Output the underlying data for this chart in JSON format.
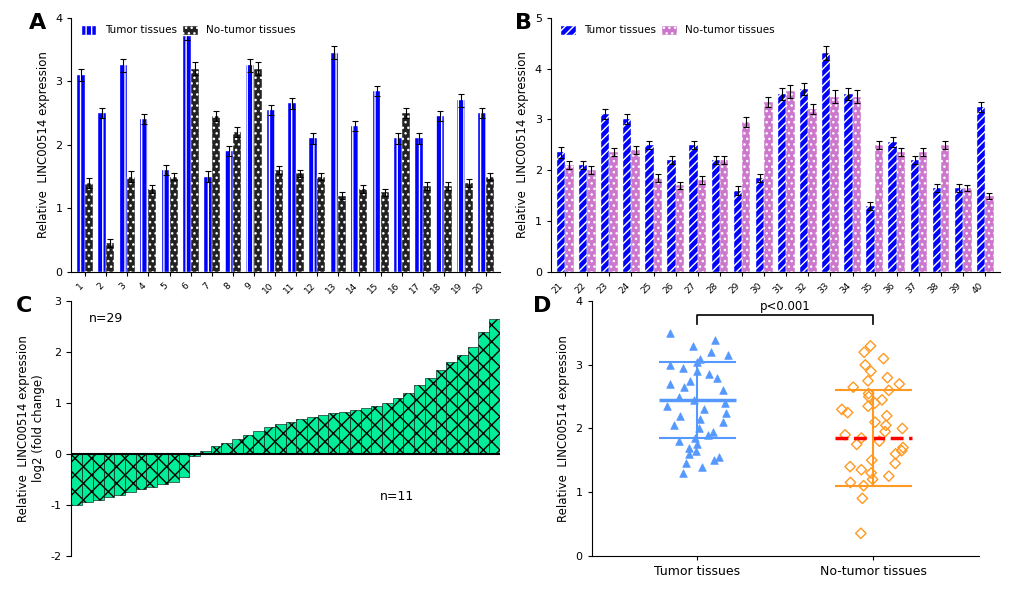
{
  "panel_A_tumor": [
    3.1,
    2.5,
    3.25,
    2.4,
    1.6,
    3.75,
    1.5,
    1.9,
    3.25,
    2.55,
    2.65,
    2.1,
    3.45,
    2.3,
    2.85,
    2.1,
    2.1,
    2.45,
    2.7,
    2.5
  ],
  "panel_A_notumor": [
    1.4,
    0.45,
    1.5,
    1.3,
    1.5,
    3.2,
    2.45,
    2.2,
    3.2,
    1.6,
    1.55,
    1.5,
    1.2,
    1.3,
    1.25,
    2.5,
    1.35,
    1.35,
    1.4,
    1.5
  ],
  "panel_A_err": [
    0.1,
    0.08,
    0.1,
    0.08,
    0.08,
    0.1,
    0.08,
    0.08,
    0.1,
    0.08,
    0.08,
    0.08,
    0.1,
    0.08,
    0.08,
    0.08,
    0.08,
    0.08,
    0.1,
    0.08
  ],
  "panel_A_nerr": [
    0.08,
    0.06,
    0.08,
    0.06,
    0.06,
    0.1,
    0.08,
    0.08,
    0.1,
    0.06,
    0.06,
    0.06,
    0.06,
    0.06,
    0.06,
    0.08,
    0.06,
    0.06,
    0.06,
    0.06
  ],
  "panel_B_tumor": [
    2.35,
    2.1,
    3.1,
    3.0,
    2.5,
    2.2,
    2.5,
    2.2,
    1.6,
    1.85,
    3.5,
    3.6,
    4.3,
    3.5,
    1.3,
    2.55,
    2.2,
    1.65,
    1.65,
    3.25
  ],
  "panel_B_notumor": [
    2.1,
    2.0,
    2.35,
    2.4,
    1.85,
    1.7,
    1.8,
    2.2,
    2.95,
    3.35,
    3.55,
    3.2,
    3.45,
    3.45,
    2.5,
    2.35,
    2.35,
    2.5,
    1.65,
    1.5
  ],
  "panel_B_err": [
    0.1,
    0.08,
    0.1,
    0.1,
    0.08,
    0.08,
    0.08,
    0.08,
    0.08,
    0.08,
    0.12,
    0.12,
    0.14,
    0.12,
    0.08,
    0.1,
    0.08,
    0.08,
    0.08,
    0.1
  ],
  "panel_B_nerr": [
    0.08,
    0.08,
    0.08,
    0.08,
    0.08,
    0.06,
    0.08,
    0.08,
    0.1,
    0.1,
    0.12,
    0.1,
    0.12,
    0.12,
    0.08,
    0.08,
    0.08,
    0.08,
    0.06,
    0.06
  ],
  "panel_C_values": [
    -1.0,
    -0.95,
    -0.9,
    -0.85,
    -0.8,
    -0.75,
    -0.7,
    -0.65,
    -0.6,
    -0.55,
    -0.45,
    -0.05,
    0.05,
    0.15,
    0.22,
    0.3,
    0.38,
    0.45,
    0.52,
    0.58,
    0.63,
    0.68,
    0.72,
    0.76,
    0.8,
    0.83,
    0.87,
    0.9,
    0.95,
    1.0,
    1.1,
    1.2,
    1.35,
    1.5,
    1.65,
    1.8,
    1.95,
    2.1,
    2.4,
    2.65
  ],
  "panel_D_tumor_y": [
    3.5,
    3.4,
    3.3,
    3.2,
    3.15,
    3.1,
    3.05,
    3.0,
    2.95,
    2.9,
    2.85,
    2.8,
    2.75,
    2.7,
    2.65,
    2.6,
    2.5,
    2.45,
    2.4,
    2.35,
    2.3,
    2.25,
    2.2,
    2.15,
    2.1,
    2.05,
    2.0,
    1.95,
    1.9,
    1.85,
    1.8,
    1.75,
    1.7,
    1.65,
    1.6,
    1.55,
    1.5,
    1.45,
    1.4,
    1.3
  ],
  "panel_D_notumor_y": [
    3.3,
    3.2,
    3.1,
    3.0,
    2.9,
    2.8,
    2.75,
    2.7,
    2.65,
    2.6,
    2.55,
    2.5,
    2.45,
    2.4,
    2.35,
    2.3,
    2.25,
    2.2,
    2.1,
    2.05,
    2.0,
    1.95,
    1.9,
    1.85,
    1.8,
    1.75,
    1.7,
    1.65,
    1.6,
    1.5,
    1.45,
    1.4,
    1.35,
    1.3,
    1.25,
    1.2,
    1.15,
    1.1,
    0.9,
    0.35
  ],
  "panel_D_tumor_mean": 2.45,
  "panel_D_notumor_mean": 1.85,
  "panel_D_tumor_sd_hi": 3.05,
  "panel_D_tumor_sd_lo": 1.85,
  "panel_D_notumor_sd_hi": 2.6,
  "panel_D_notumor_sd_lo": 1.1,
  "tumor_color_A": "#0000FF",
  "notumor_color_A": "#222222",
  "tumor_color_B": "#0000FF",
  "notumor_color_B": "#CC77CC",
  "panel_C_color": "#00EE99",
  "panel_D_tumor_color": "#5599FF",
  "panel_D_notumor_color": "#FF9922",
  "bg_color": "#FFFFFF",
  "panel_label_fontsize": 16,
  "axis_label_fontsize": 8.5,
  "tick_fontsize": 8
}
